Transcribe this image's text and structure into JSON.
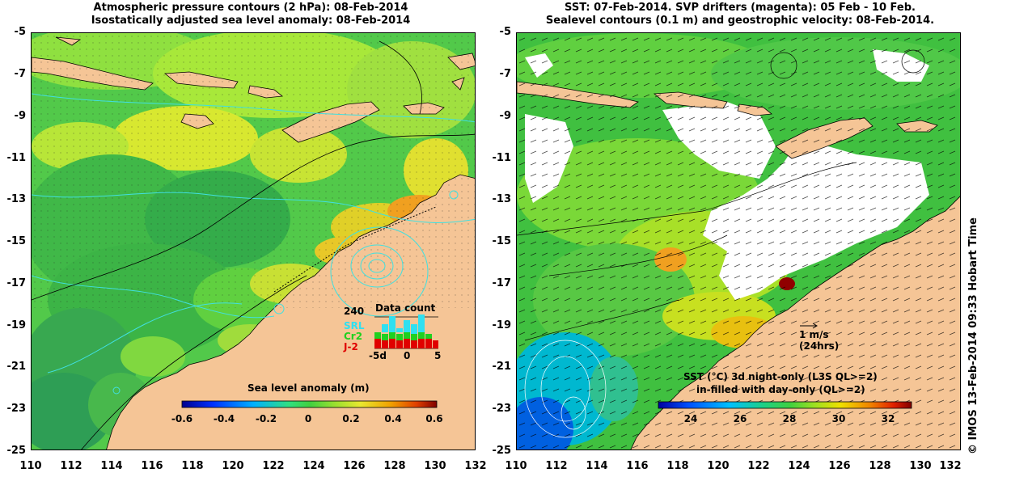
{
  "left_panel": {
    "title_line1": "Atmospheric pressure contours (2 hPa): 08-Feb-2014",
    "title_line2": "Isostatically adjusted sea level anomaly: 08-Feb-2014",
    "colorbar": {
      "title": "Sea level anomaly (m)",
      "ticks": [
        "-0.6",
        "-0.4",
        "-0.2",
        "0",
        "0.2",
        "0.4",
        "0.6"
      ]
    },
    "data_count": {
      "title": "Data count",
      "max_label": "240",
      "series": [
        "SRL",
        "Cr2",
        "J-2"
      ],
      "axis_ticks": [
        "-5d",
        "0",
        "5"
      ]
    }
  },
  "right_panel": {
    "title_line1": "SST: 07-Feb-2014. SVP drifters (magenta): 05 Feb - 10 Feb.",
    "title_line2": "Sealevel contours (0.1 m) and geostrophic velocity: 08-Feb-2014.",
    "colorbar": {
      "title_line1": "SST (°C)  3d night-only (L3S QL>=2)",
      "title_line2": "in-filled with day-only (QL>=2)",
      "ticks": [
        "24",
        "26",
        "28",
        "30",
        "32"
      ]
    },
    "velocity_key": {
      "label": "1 m/s",
      "sublabel": "(24hrs)"
    }
  },
  "axes": {
    "y_ticks": [
      "-5",
      "-7",
      "-9",
      "-11",
      "-13",
      "-15",
      "-17",
      "-19",
      "-21",
      "-23",
      "-25"
    ],
    "x_ticks": [
      "110",
      "112",
      "114",
      "116",
      "118",
      "120",
      "122",
      "124",
      "126",
      "128",
      "130",
      "132"
    ]
  },
  "credit": "© IMOS 13-Feb-2014 09:33 Hobart Time",
  "colors": {
    "land": "#f5c596",
    "contour": "#40e0e0",
    "sla_colormap": [
      "#00008f",
      "#0030ff",
      "#00b0ff",
      "#30e080",
      "#40d040",
      "#9ae030",
      "#e8e830",
      "#f0a000",
      "#e04000",
      "#800000"
    ],
    "sst_colormap": [
      "#0000a0",
      "#0050ff",
      "#00c0ff",
      "#20d080",
      "#40d040",
      "#a0e020",
      "#f0e000",
      "#f08000",
      "#e02000",
      "#800000"
    ]
  }
}
